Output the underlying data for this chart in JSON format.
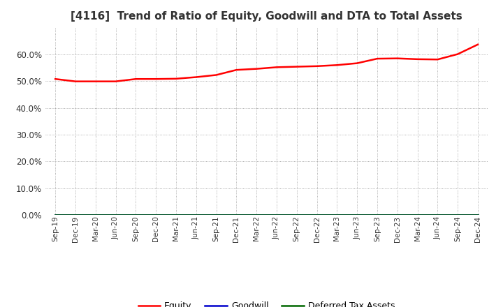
{
  "title": "[4116]  Trend of Ratio of Equity, Goodwill and DTA to Total Assets",
  "title_fontsize": 11,
  "title_color": "#333333",
  "x_labels": [
    "Sep-19",
    "Dec-19",
    "Mar-20",
    "Jun-20",
    "Sep-20",
    "Dec-20",
    "Mar-21",
    "Jun-21",
    "Sep-21",
    "Dec-21",
    "Mar-22",
    "Jun-22",
    "Sep-22",
    "Dec-22",
    "Mar-23",
    "Jun-23",
    "Sep-23",
    "Dec-23",
    "Mar-24",
    "Jun-24",
    "Sep-24",
    "Dec-24"
  ],
  "equity": [
    0.508,
    0.499,
    0.499,
    0.499,
    0.508,
    0.508,
    0.509,
    0.515,
    0.523,
    0.542,
    0.546,
    0.552,
    0.554,
    0.556,
    0.56,
    0.567,
    0.584,
    0.585,
    0.582,
    0.581,
    0.601,
    0.637
  ],
  "goodwill": [
    0.0,
    0.0,
    0.0,
    0.0,
    0.0,
    0.0,
    0.0,
    0.0,
    0.0,
    0.0,
    0.0,
    0.0,
    0.0,
    0.0,
    0.0,
    0.0,
    0.0,
    0.0,
    0.0,
    0.0,
    0.0,
    0.0
  ],
  "dta": [
    0.0,
    0.0,
    0.0,
    0.0,
    0.0,
    0.0,
    0.0,
    0.0,
    0.0,
    0.0,
    0.0,
    0.0,
    0.0,
    0.0,
    0.0,
    0.0,
    0.0,
    0.0,
    0.0,
    0.0,
    0.0,
    0.0
  ],
  "equity_color": "#ff0000",
  "goodwill_color": "#0000cc",
  "dta_color": "#006600",
  "ylim": [
    0.0,
    0.7
  ],
  "yticks": [
    0.0,
    0.1,
    0.2,
    0.3,
    0.4,
    0.5,
    0.6
  ],
  "background_color": "#ffffff",
  "plot_bg_color": "#ffffff",
  "grid_color": "#999999",
  "legend_labels": [
    "Equity",
    "Goodwill",
    "Deferred Tax Assets"
  ]
}
